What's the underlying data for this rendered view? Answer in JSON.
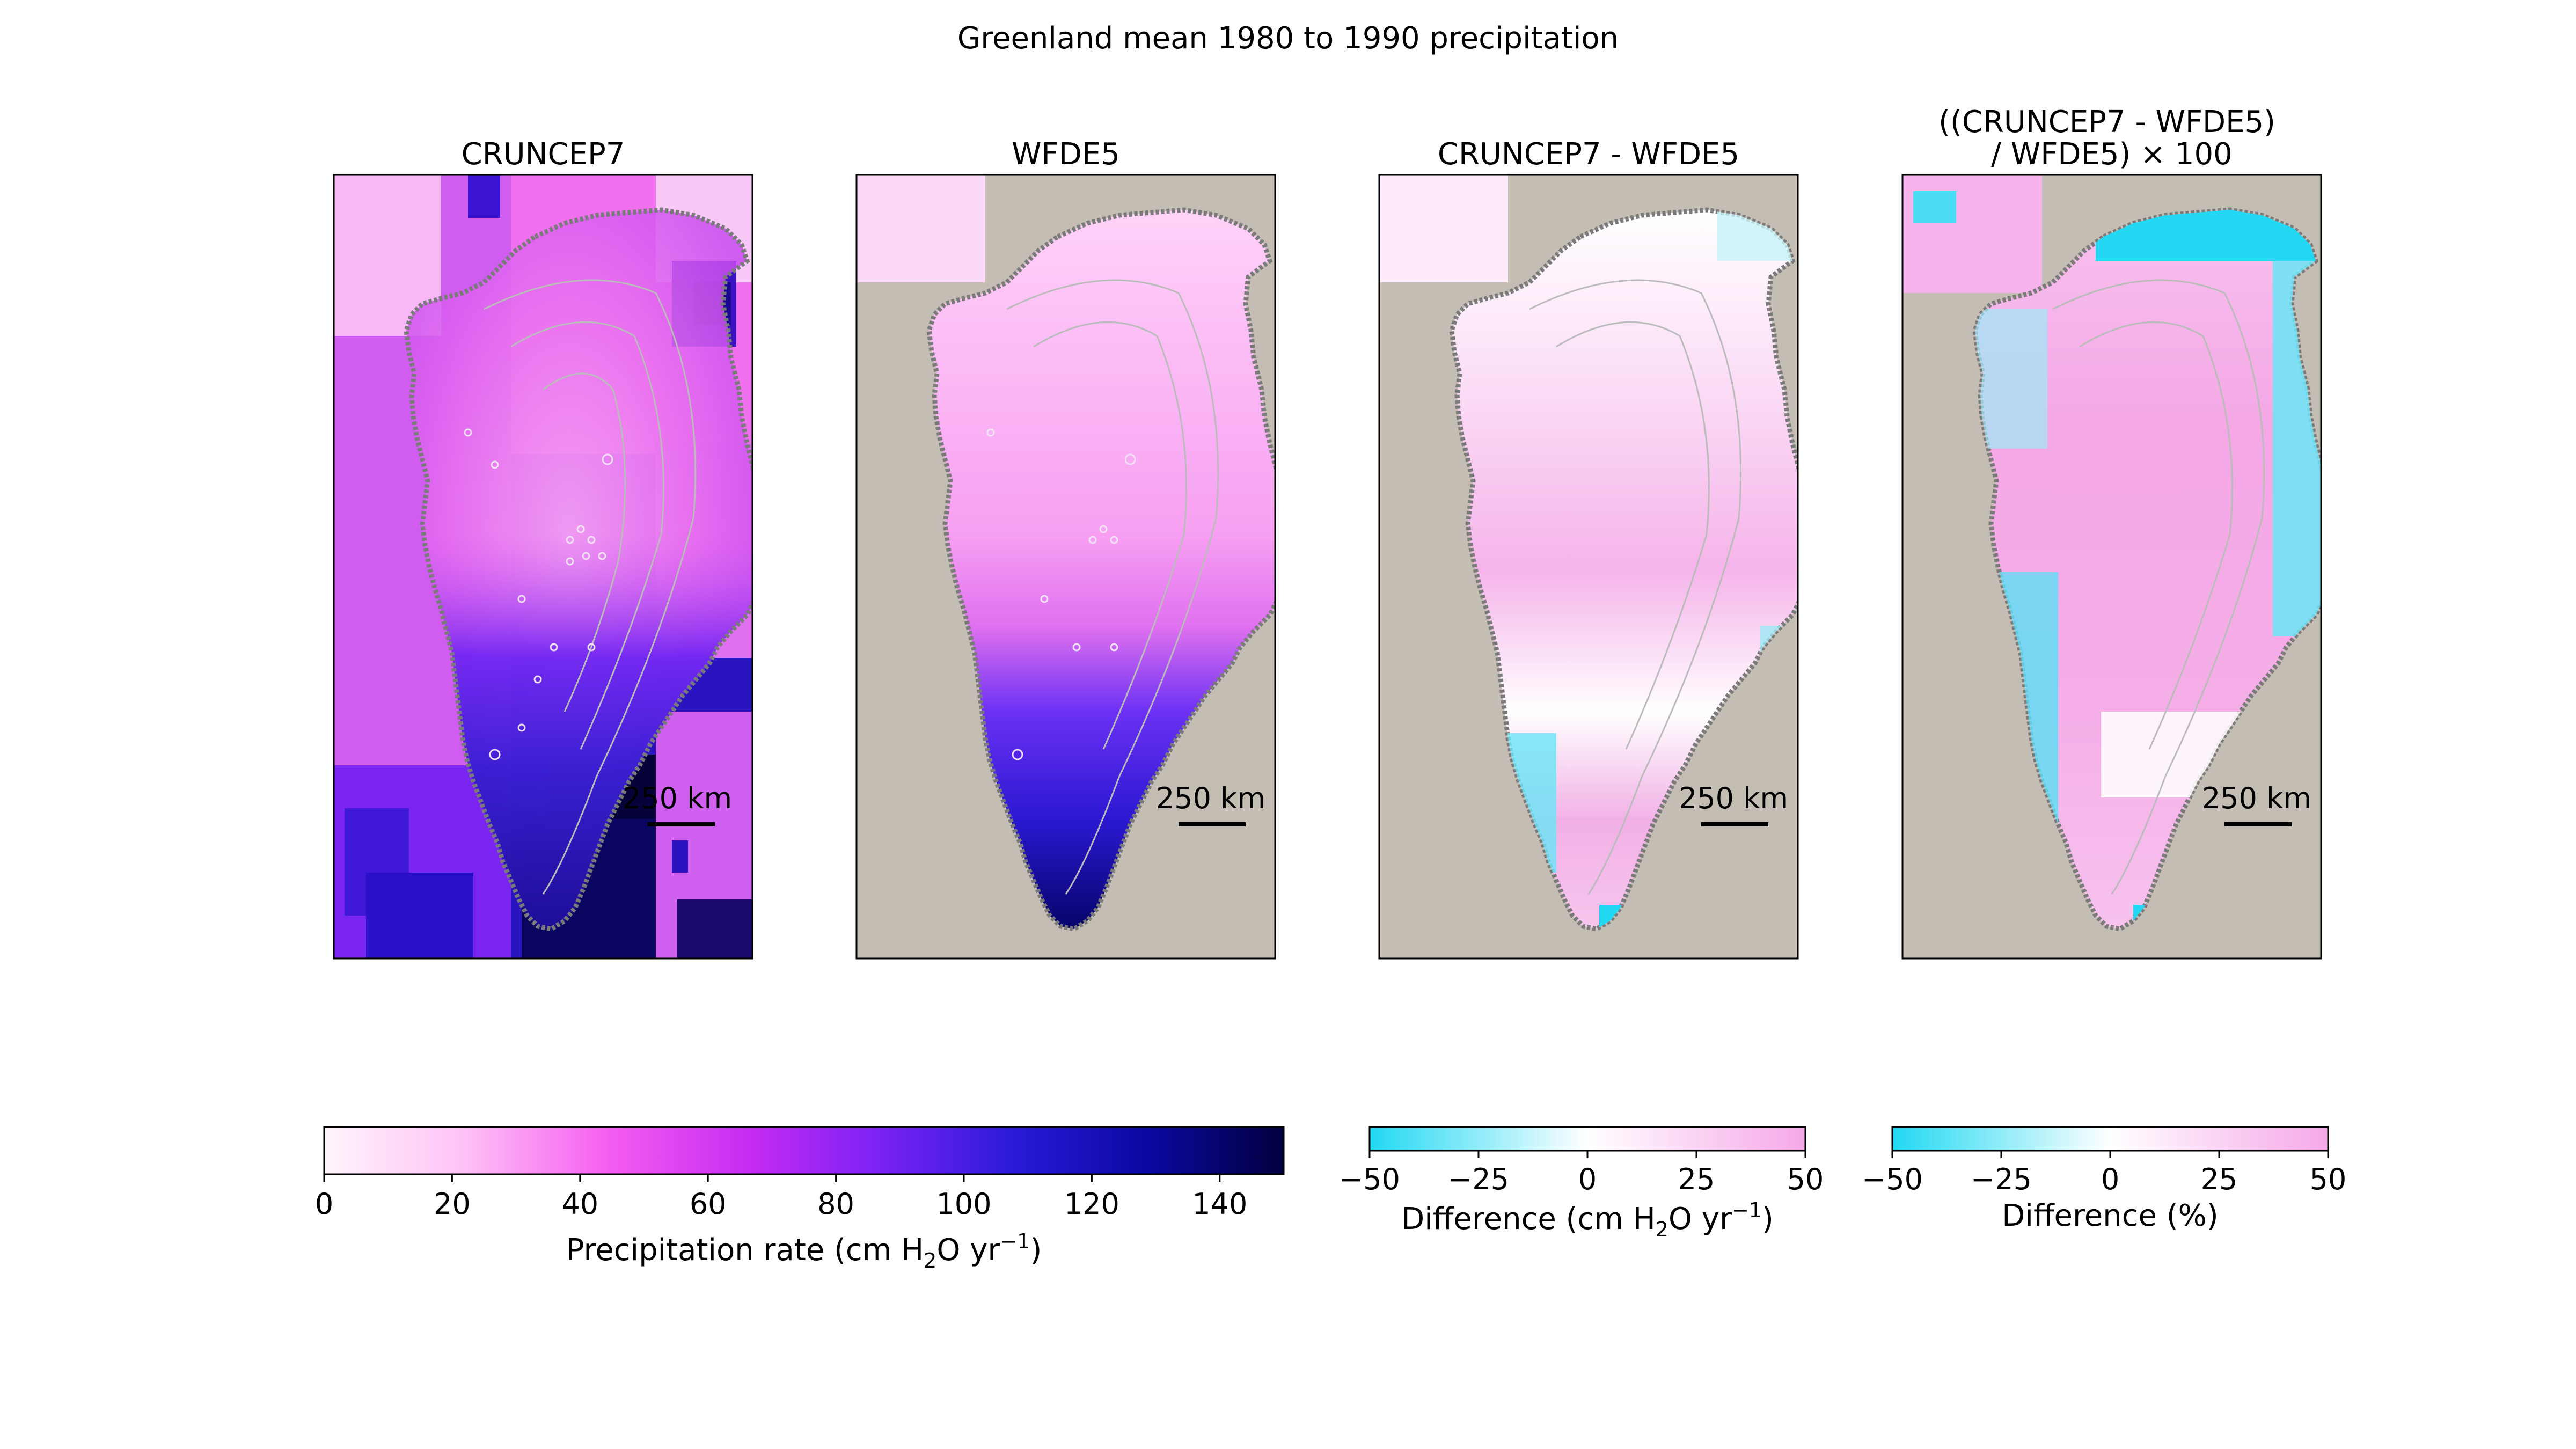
{
  "figure": {
    "title": "Greenland mean 1980 to 1990 precipitation"
  },
  "panels": [
    {
      "title_lines": [
        "CRUNCEP7"
      ],
      "scale_bar_label": "250 km",
      "field": "precip",
      "colormap": "precip"
    },
    {
      "title_lines": [
        "WFDE5"
      ],
      "scale_bar_label": "250 km",
      "field": "precip_wfde5",
      "colormap": "precip"
    },
    {
      "title_lines": [
        "CRUNCEP7 - WFDE5"
      ],
      "scale_bar_label": "250 km",
      "field": "diff_abs",
      "colormap": "diff"
    },
    {
      "title_lines": [
        "((CRUNCEP7 - WFDE5)",
        "/ WFDE5) × 100"
      ],
      "scale_bar_label": "250 km",
      "field": "diff_pct",
      "colormap": "diff"
    }
  ],
  "colorbars": [
    {
      "ticks": [
        "0",
        "20",
        "40",
        "60",
        "80",
        "100",
        "120",
        "140"
      ],
      "label_main": "Precipitation rate (cm H",
      "label_sub": "2",
      "label_mid": "O yr",
      "label_sup": "−1",
      "label_end": ")",
      "colormap": "precip",
      "range": [
        0,
        150
      ]
    },
    {
      "ticks": [
        "−50",
        "−25",
        "0",
        "25",
        "50"
      ],
      "label_main": "Difference (cm H",
      "label_sub": "2",
      "label_mid": "O yr",
      "label_sup": "−1",
      "label_end": ")",
      "colormap": "diff",
      "range": [
        -50,
        50
      ]
    },
    {
      "ticks": [
        "−50",
        "−25",
        "0",
        "25",
        "50"
      ],
      "label_main": "Difference (%)",
      "colormap": "diff",
      "range": [
        -50,
        50
      ]
    }
  ],
  "colors": {
    "ocean_land_background": "#c4bdb3",
    "coastline": "#777777",
    "contours": "#aaaaaa",
    "precip_scale": [
      "#fff5fc",
      "#ff9ef0",
      "#ee3cf0",
      "#a020f0",
      "#5a1ef0",
      "#1a10c0",
      "#04005a"
    ],
    "diff_scale": [
      "#22d8f2",
      "#ffffff",
      "#f5a8e8"
    ]
  }
}
